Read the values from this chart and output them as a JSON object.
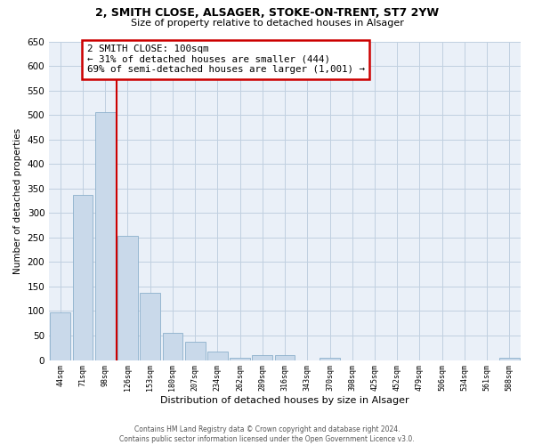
{
  "title_line1": "2, SMITH CLOSE, ALSAGER, STOKE-ON-TRENT, ST7 2YW",
  "title_line2": "Size of property relative to detached houses in Alsager",
  "xlabel": "Distribution of detached houses by size in Alsager",
  "ylabel": "Number of detached properties",
  "bar_color": "#c9d9ea",
  "bar_edge_color": "#8cb0cc",
  "grid_color": "#c0d0e0",
  "categories": [
    "44sqm",
    "71sqm",
    "98sqm",
    "126sqm",
    "153sqm",
    "180sqm",
    "207sqm",
    "234sqm",
    "262sqm",
    "289sqm",
    "316sqm",
    "343sqm",
    "370sqm",
    "398sqm",
    "425sqm",
    "452sqm",
    "479sqm",
    "506sqm",
    "534sqm",
    "561sqm",
    "588sqm"
  ],
  "values": [
    97,
    336,
    506,
    253,
    138,
    55,
    38,
    18,
    5,
    10,
    10,
    0,
    5,
    0,
    0,
    0,
    0,
    0,
    0,
    0,
    5
  ],
  "vline_x_index": 2,
  "vline_color": "#cc0000",
  "annotation_line1": "2 SMITH CLOSE: 100sqm",
  "annotation_line2": "← 31% of detached houses are smaller (444)",
  "annotation_line3": "69% of semi-detached houses are larger (1,001) →",
  "annotation_box_color": "#cc0000",
  "ylim": [
    0,
    650
  ],
  "yticks": [
    0,
    50,
    100,
    150,
    200,
    250,
    300,
    350,
    400,
    450,
    500,
    550,
    600,
    650
  ],
  "footer_text": "Contains HM Land Registry data © Crown copyright and database right 2024.\nContains public sector information licensed under the Open Government Licence v3.0.",
  "bg_color": "#ffffff",
  "plot_bg_color": "#eaf0f8"
}
